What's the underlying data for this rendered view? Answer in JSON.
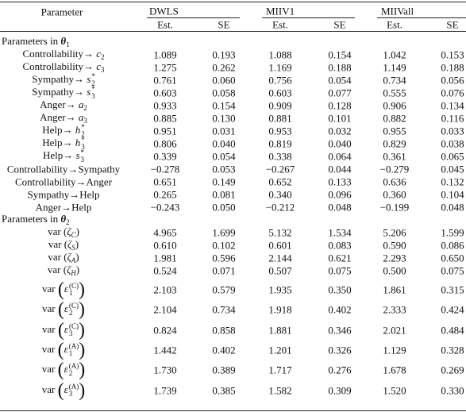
{
  "header": {
    "parameter": "Parameter",
    "groups": [
      {
        "name": "DWLS",
        "columns": [
          "Est.",
          "SE"
        ]
      },
      {
        "name": "MIIV1",
        "columns": [
          "Est.",
          "SE"
        ]
      },
      {
        "name": "MIIVall",
        "columns": [
          "Est.",
          "SE"
        ]
      }
    ]
  },
  "sections": [
    {
      "title": [
        {
          "text": "Parameters in "
        },
        {
          "text": "θ",
          "bold": true
        },
        {
          "text": "1",
          "sub": true
        }
      ],
      "rows": [
        {
          "label": [
            {
              "text": "Controllability→ "
            },
            {
              "text": "c",
              "it": true
            },
            {
              "text": "2",
              "sub": true
            }
          ],
          "values": [
            "1.089",
            "0.193",
            "1.088",
            "0.154",
            "1.042",
            "0.153"
          ]
        },
        {
          "label": [
            {
              "text": "Controllability→ "
            },
            {
              "text": "c",
              "it": true
            },
            {
              "text": "3",
              "sub": true
            }
          ],
          "values": [
            "1.275",
            "0.262",
            "1.169",
            "0.188",
            "1.149",
            "0.188"
          ]
        },
        {
          "label": [
            {
              "text": "Sympathy→ "
            },
            {
              "text": "s",
              "it": true
            },
            {
              "sup": "*",
              "sub": "2"
            }
          ],
          "values": [
            "0.761",
            "0.060",
            "0.756",
            "0.054",
            "0.734",
            "0.056"
          ]
        },
        {
          "label": [
            {
              "text": "Sympathy→ "
            },
            {
              "text": "s",
              "it": true
            },
            {
              "sup": "*",
              "sub": "3"
            }
          ],
          "values": [
            "0.603",
            "0.058",
            "0.603",
            "0.077",
            "0.555",
            "0.076"
          ]
        },
        {
          "label": [
            {
              "text": "Anger→ "
            },
            {
              "text": "a",
              "it": true
            },
            {
              "text": "2",
              "sub": true
            }
          ],
          "values": [
            "0.933",
            "0.154",
            "0.909",
            "0.128",
            "0.906",
            "0.134"
          ]
        },
        {
          "label": [
            {
              "text": "Anger→ "
            },
            {
              "text": "a",
              "it": true
            },
            {
              "text": "3",
              "sub": true
            }
          ],
          "values": [
            "0.885",
            "0.130",
            "0.881",
            "0.101",
            "0.882",
            "0.116"
          ]
        },
        {
          "label": [
            {
              "text": "Help→ "
            },
            {
              "text": "h",
              "it": true
            },
            {
              "sup": "*",
              "sub": "2"
            }
          ],
          "values": [
            "0.951",
            "0.031",
            "0.953",
            "0.032",
            "0.955",
            "0.033"
          ]
        },
        {
          "label": [
            {
              "text": "Help→ "
            },
            {
              "text": "h",
              "it": true
            },
            {
              "sup": "*",
              "sub": "3"
            }
          ],
          "values": [
            "0.806",
            "0.040",
            "0.819",
            "0.040",
            "0.829",
            "0.038"
          ]
        },
        {
          "label": [
            {
              "text": "Help→ "
            },
            {
              "text": "s",
              "it": true
            },
            {
              "sup": "*",
              "sub": "3"
            }
          ],
          "values": [
            "0.339",
            "0.054",
            "0.338",
            "0.064",
            "0.361",
            "0.065"
          ]
        },
        {
          "label": [
            {
              "text": "Controllability→Sympathy"
            }
          ],
          "values": [
            "−0.278",
            "0.053",
            "−0.267",
            "0.044",
            "−0.279",
            "0.045"
          ]
        },
        {
          "label": [
            {
              "text": "Controllability→Anger"
            }
          ],
          "values": [
            "0.651",
            "0.149",
            "0.652",
            "0.133",
            "0.636",
            "0.132"
          ]
        },
        {
          "label": [
            {
              "text": "Sympathy→Help"
            }
          ],
          "values": [
            "0.265",
            "0.081",
            "0.340",
            "0.096",
            "0.360",
            "0.104"
          ]
        },
        {
          "label": [
            {
              "text": "Anger→Help"
            }
          ],
          "values": [
            "−0.243",
            "0.050",
            "−0.212",
            "0.048",
            "−0.199",
            "0.048"
          ]
        }
      ]
    },
    {
      "title": [
        {
          "text": "Parameters in "
        },
        {
          "text": "θ",
          "bold": true
        },
        {
          "text": "2",
          "sub": true
        }
      ],
      "rows": [
        {
          "label": [
            {
              "text": "var ("
            },
            {
              "text": "ζ",
              "it": true
            },
            {
              "text": "C",
              "sub": true,
              "it": true
            },
            {
              "text": ")"
            }
          ],
          "values": [
            "4.965",
            "1.699",
            "5.132",
            "1.534",
            "5.206",
            "1.599"
          ]
        },
        {
          "label": [
            {
              "text": "var ("
            },
            {
              "text": "ζ",
              "it": true
            },
            {
              "text": "S",
              "sub": true,
              "it": true
            },
            {
              "text": ")"
            }
          ],
          "values": [
            "0.610",
            "0.102",
            "0.601",
            "0.083",
            "0.590",
            "0.086"
          ]
        },
        {
          "label": [
            {
              "text": "var ("
            },
            {
              "text": "ζ",
              "it": true
            },
            {
              "text": "A",
              "sub": true,
              "it": true
            },
            {
              "text": ")"
            }
          ],
          "values": [
            "1.981",
            "0.596",
            "2.144",
            "0.621",
            "2.293",
            "0.650"
          ]
        },
        {
          "label": [
            {
              "text": "var ("
            },
            {
              "text": "ζ",
              "it": true
            },
            {
              "text": "H",
              "sub": true,
              "it": true
            },
            {
              "text": ")"
            }
          ],
          "values": [
            "0.524",
            "0.071",
            "0.507",
            "0.075",
            "0.500",
            "0.075"
          ]
        },
        {
          "label": [
            {
              "text": "var "
            },
            {
              "text": "(",
              "big": true
            },
            {
              "text": "ε",
              "it": true
            },
            {
              "sup": "(C)",
              "sub": "1"
            },
            {
              "text": ")",
              "big": true
            }
          ],
          "values": [
            "2.103",
            "0.579",
            "1.935",
            "0.350",
            "1.861",
            "0.315"
          ]
        },
        {
          "label": [
            {
              "text": "var "
            },
            {
              "text": "(",
              "big": true
            },
            {
              "text": "ε",
              "it": true
            },
            {
              "sup": "(C)",
              "sub": "2"
            },
            {
              "text": ")",
              "big": true
            }
          ],
          "values": [
            "2.104",
            "0.734",
            "1.918",
            "0.402",
            "2.333",
            "0.424"
          ]
        },
        {
          "label": [
            {
              "text": "var "
            },
            {
              "text": "(",
              "big": true
            },
            {
              "text": "ε",
              "it": true
            },
            {
              "sup": "(C)",
              "sub": "3"
            },
            {
              "text": ")",
              "big": true
            }
          ],
          "values": [
            "0.824",
            "0.858",
            "1.881",
            "0.346",
            "2.021",
            "0.484"
          ]
        },
        {
          "label": [
            {
              "text": "var "
            },
            {
              "text": "(",
              "big": true
            },
            {
              "text": "ε",
              "it": true
            },
            {
              "sup": "(A)",
              "sub": "1"
            },
            {
              "text": ")",
              "big": true
            }
          ],
          "values": [
            "1.442",
            "0.402",
            "1.201",
            "0.326",
            "1.129",
            "0.328"
          ]
        },
        {
          "label": [
            {
              "text": "var "
            },
            {
              "text": "(",
              "big": true
            },
            {
              "text": "ε",
              "it": true
            },
            {
              "sup": "(A)",
              "sub": "2"
            },
            {
              "text": ")",
              "big": true
            }
          ],
          "values": [
            "1.730",
            "0.389",
            "1.717",
            "0.276",
            "1.678",
            "0.269"
          ]
        },
        {
          "label": [
            {
              "text": "var "
            },
            {
              "text": "(",
              "big": true
            },
            {
              "text": "ε",
              "it": true
            },
            {
              "sup": "(A)",
              "sub": "3"
            },
            {
              "text": ")",
              "big": true
            }
          ],
          "values": [
            "1.739",
            "0.385",
            "1.582",
            "0.309",
            "1.520",
            "0.330"
          ]
        }
      ]
    }
  ]
}
